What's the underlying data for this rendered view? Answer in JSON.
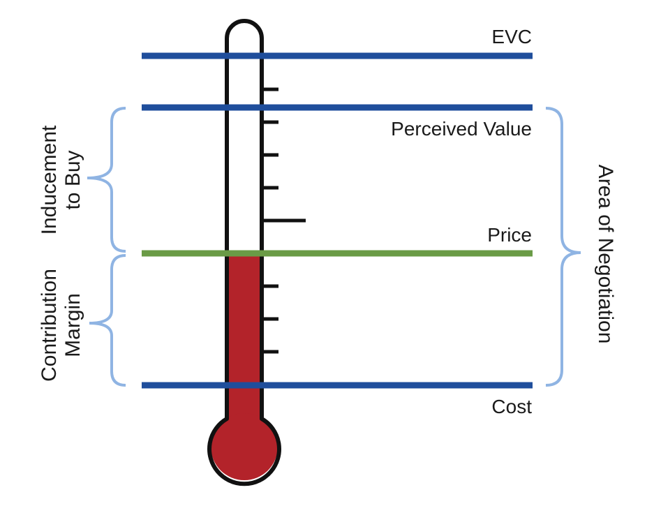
{
  "levels": {
    "evc": "EVC",
    "perceived_value": "Perceived Value",
    "price": "Price",
    "cost": "Cost"
  },
  "brackets": {
    "inducement_line1": "Inducement",
    "inducement_line2": "to Buy",
    "margin_line1": "Contribution",
    "margin_line2": "Margin",
    "negotiation": "Area of Negotiation"
  },
  "colors": {
    "value_lines": "#1f4e9c",
    "price_line": "#6a9b46",
    "mercury": "#b3232a",
    "brackets": "#8fb4e3",
    "outline": "#111111"
  },
  "thermometer_fill_level": "price"
}
